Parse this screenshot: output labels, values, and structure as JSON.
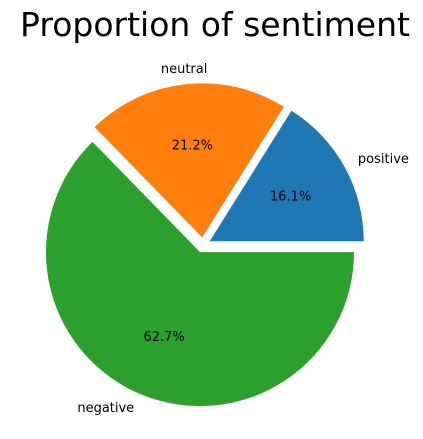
{
  "chart_data": {
    "type": "pie",
    "title": "Proportion of sentiment",
    "slices": [
      {
        "label": "positive",
        "value": 16.1,
        "value_label": "16.1%",
        "color": "#1f77b4",
        "explode": 0.05
      },
      {
        "label": "neutral",
        "value": 21.2,
        "value_label": "21.2%",
        "color": "#ff7f0e",
        "explode": 0.05
      },
      {
        "label": "negative",
        "value": 62.7,
        "value_label": "62.7%",
        "color": "#2ca02c",
        "explode": 0.05
      }
    ],
    "start_angle_deg": 0,
    "direction": "counterclockwise",
    "legend": "none"
  }
}
